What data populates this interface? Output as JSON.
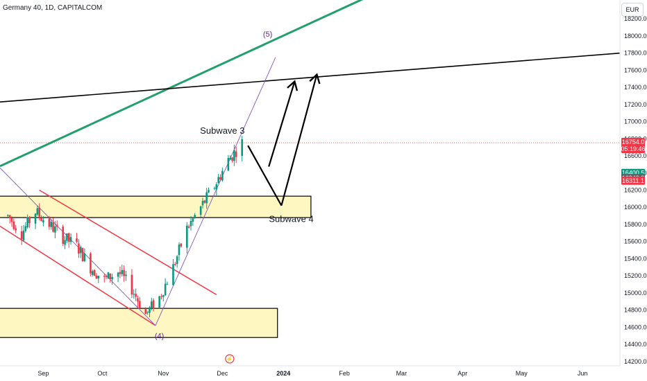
{
  "header": {
    "symbol_line": "Germany 40, 1D, CAPITALCOM",
    "currency": "EUR"
  },
  "colors": {
    "up": "#089981",
    "down": "#f23645",
    "trend_green": "#22a06b",
    "channel_red": "#f23645",
    "wave_purple": "#7e57c2",
    "zone_fill": "#fff7c2",
    "black": "#000000",
    "badge_grey": "#5d606b"
  },
  "chart_data": {
    "type": "candlestick",
    "title": "Germany 40, 1D, CAPITALCOM",
    "y_axis": {
      "ticks": [
        "18200.0",
        "18000.0",
        "17800.0",
        "17600.0",
        "17400.0",
        "17200.0",
        "17000.0",
        "16800.0",
        "16600.0",
        "16400.0",
        "16200.0",
        "16000.0",
        "15800.0",
        "15600.0",
        "15400.0",
        "15200.0",
        "15000.0",
        "14800.0",
        "14600.0",
        "14400.0",
        "14200.0"
      ],
      "range": [
        14150,
        18420
      ]
    },
    "x_axis": {
      "ticks": [
        "Sep",
        "Oct",
        "Nov",
        "Dec",
        "2024",
        "Feb",
        "Mar",
        "Apr",
        "May",
        "Jun"
      ],
      "range": [
        "2023-08-10",
        "2024-06-20"
      ]
    },
    "price_badges": [
      {
        "label": "16754.0",
        "sub": "05:19:46",
        "value": 16754,
        "color": "#f23645"
      },
      {
        "label": "16400.5",
        "value": 16400.5,
        "color": "#089981"
      },
      {
        "label": "16340.9",
        "value": 16340.9,
        "color": "#5d606b"
      },
      {
        "label": "16311.1",
        "value": 16311.1,
        "color": "#f23645"
      }
    ],
    "last_price": 16754,
    "candles_weekly_path": [
      [
        "2023-08-14",
        15900
      ],
      [
        "2023-08-21",
        15700
      ],
      [
        "2023-08-28",
        15950
      ],
      [
        "2023-09-04",
        15800
      ],
      [
        "2023-09-11",
        15650
      ],
      [
        "2023-09-18",
        15550
      ],
      [
        "2023-09-25",
        15300
      ],
      [
        "2023-10-02",
        15150
      ],
      [
        "2023-10-09",
        15250
      ],
      [
        "2023-10-16",
        15050
      ],
      [
        "2023-10-23",
        14750
      ],
      [
        "2023-10-30",
        14950
      ],
      [
        "2023-11-06",
        15300
      ],
      [
        "2023-11-13",
        15750
      ],
      [
        "2023-11-20",
        16000
      ],
      [
        "2023-11-27",
        16250
      ],
      [
        "2023-12-04",
        16550
      ],
      [
        "2023-12-11",
        16754
      ]
    ],
    "zones": [
      {
        "from_date": "2023-08-10",
        "to_date": "2024-01-15",
        "low": 15880,
        "high": 16130
      },
      {
        "from_date": "2023-08-10",
        "to_date": "2023-12-29",
        "low": 14480,
        "high": 14820
      }
    ],
    "lines": [
      {
        "id": "green-trendline",
        "p1": [
          "2023-08-10",
          16480
        ],
        "p2": [
          "2024-02-15",
          18480
        ]
      },
      {
        "id": "black-resistance",
        "p1": [
          "2023-08-10",
          17230
        ],
        "p2": [
          "2024-06-20",
          17800
        ]
      },
      {
        "id": "channel-upper",
        "p1": [
          "2023-08-30",
          16200
        ],
        "p2": [
          "2023-11-28",
          14980
        ]
      },
      {
        "id": "channel-lower",
        "p1": [
          "2023-08-10",
          15780
        ],
        "p2": [
          "2023-10-28",
          14620
        ]
      },
      {
        "id": "wave-line-a",
        "p1": [
          "2023-08-10",
          16460
        ],
        "p2": [
          "2023-10-28",
          14620
        ]
      },
      {
        "id": "wave-line-b",
        "p1": [
          "2023-10-28",
          14620
        ],
        "p2": [
          "2023-12-28",
          17750
        ]
      }
    ],
    "projection_path": [
      [
        "2023-12-14",
        16720
      ],
      [
        "2023-12-31",
        16020
      ],
      [
        "2024-01-18",
        17550
      ]
    ],
    "annotations": [
      {
        "text": "Subwave 3",
        "date": "2023-12-01",
        "price": 16860
      },
      {
        "text": "Subwave 4",
        "date": "2024-01-05",
        "price": 15830
      },
      {
        "text": "(5)",
        "date": "2023-12-24",
        "price": 17990
      },
      {
        "text": "(4)",
        "date": "2023-10-30",
        "price": 14470
      }
    ]
  }
}
